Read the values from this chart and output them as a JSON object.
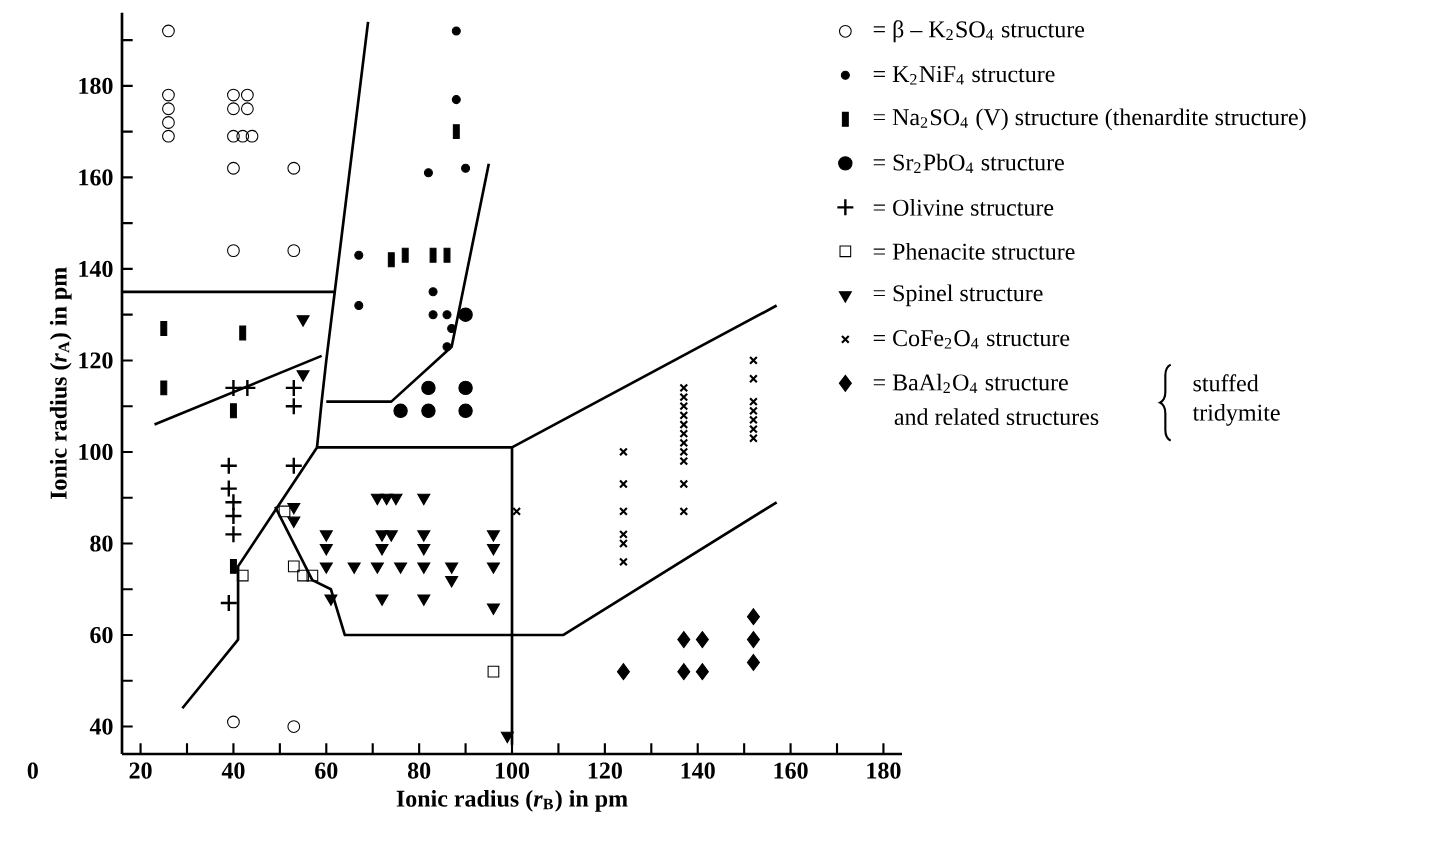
{
  "chart_data": {
    "type": "scatter",
    "xlabel": "Ionic radius (*r*$_{B}$) in pm",
    "ylabel": "Ionic radius (*r*$_{A}$) in pm",
    "xlim": [
      16,
      184
    ],
    "ylim": [
      34,
      196
    ],
    "xticks": [
      20,
      {
        "value": 30,
        "label": null
      },
      40,
      {
        "value": 50,
        "label": null
      },
      60,
      {
        "value": 70,
        "label": null
      },
      80,
      {
        "value": 90,
        "label": null
      },
      100,
      {
        "value": 110,
        "label": null
      },
      120,
      {
        "value": 130,
        "label": null
      },
      140,
      {
        "value": 150,
        "label": null
      },
      160,
      {
        "value": 170,
        "label": null
      },
      180
    ],
    "yticks": [
      40,
      {
        "value": 50,
        "label": null
      },
      60,
      {
        "value": 70,
        "label": null
      },
      80,
      {
        "value": 90,
        "label": null
      },
      100,
      {
        "value": 110,
        "label": null
      },
      120,
      {
        "value": 130,
        "label": null
      },
      140,
      {
        "value": 150,
        "label": null
      },
      160,
      {
        "value": 170,
        "label": null
      },
      180,
      {
        "value": 190,
        "label": null
      }
    ],
    "legend": "right",
    "annotations": [
      "and related structures",
      "stuffed tridymite",
      "0"
    ],
    "series": [
      {
        "name": "= β – K$_{2}$SO$_{4}$ structure",
        "marker": "circle",
        "color": "#000000",
        "x": [
          26,
          26,
          26,
          26,
          26,
          40,
          43,
          40,
          43,
          40,
          42,
          44,
          40,
          40,
          53,
          53,
          40,
          53
        ],
        "values": [
          192,
          178,
          175,
          172,
          169,
          178,
          178,
          175,
          175,
          169,
          169,
          169,
          162,
          144,
          162,
          144,
          41,
          40
        ]
      },
      {
        "name": "= K$_{2}$NiF$_{4}$ structure",
        "marker": "circle",
        "color": "#000000",
        "x": [
          88,
          88,
          82,
          90,
          67,
          67,
          83,
          83,
          86,
          87,
          86
        ],
        "values": [
          192,
          177,
          161,
          162,
          143,
          132,
          135,
          130,
          130,
          127,
          123
        ]
      },
      {
        "name": "= Na$_{2}$SO$_{4}$ (V) structure (thenardite structure)",
        "marker": "square",
        "color": "#000000",
        "x": [
          25,
          25,
          42,
          40,
          40,
          74,
          77,
          83,
          86,
          88
        ],
        "values": [
          127,
          114,
          126,
          109,
          75,
          142,
          143,
          143,
          143,
          170
        ]
      },
      {
        "name": "= Sr$_{2}$PbO$_{4}$  structure",
        "marker": "circle",
        "color": "#000000",
        "x": [
          90,
          82,
          90,
          76,
          82,
          90
        ],
        "values": [
          130,
          114,
          114,
          109,
          109,
          109
        ]
      },
      {
        "name": "= Olivine structure",
        "marker": "cross",
        "color": "#000000",
        "x": [
          40,
          43,
          53,
          53,
          39,
          39,
          40,
          40,
          40,
          39,
          53
        ],
        "values": [
          114,
          114,
          114,
          110,
          97,
          92,
          89,
          86,
          82,
          67,
          97
        ]
      },
      {
        "name": "= Phenacite structure",
        "marker": "square",
        "color": "#000000",
        "x": [
          42,
          53,
          55,
          57,
          96,
          51
        ],
        "values": [
          73,
          75,
          73,
          73,
          52,
          87
        ]
      },
      {
        "name": "= Spinel structure",
        "marker": "triangle",
        "color": "#000000",
        "x": [
          55,
          55,
          53,
          53,
          71,
          73,
          75,
          81,
          60,
          72,
          74,
          81,
          96,
          60,
          72,
          81,
          96,
          60,
          66,
          71,
          76,
          81,
          87,
          96,
          87,
          61,
          72,
          81,
          96,
          99
        ],
        "values": [
          129,
          117,
          88,
          85,
          90,
          90,
          90,
          90,
          82,
          82,
          82,
          82,
          82,
          79,
          79,
          79,
          79,
          75,
          75,
          75,
          75,
          75,
          75,
          75,
          72,
          68,
          68,
          68,
          66,
          38
        ]
      },
      {
        "name": "= CoFe$_{2}$O$_{4}$ structure",
        "marker": "cross",
        "color": "#000000",
        "x": [
          101,
          124,
          124,
          124,
          124,
          124,
          124,
          137,
          137,
          137,
          137,
          137,
          137,
          137,
          137,
          137,
          137,
          137,
          152,
          152,
          152,
          152,
          152,
          152,
          152
        ],
        "values": [
          87,
          100,
          93,
          87,
          82,
          80,
          76,
          114,
          112,
          110,
          108,
          106,
          104,
          102,
          100,
          98,
          93,
          87,
          120,
          116,
          111,
          109,
          107,
          105,
          103
        ]
      },
      {
        "name": "= BaAl$_{2}$O$_{4}$ structure",
        "marker": "diamond",
        "color": "#000000",
        "x": [
          124,
          137,
          141,
          137,
          141,
          152,
          152,
          152
        ],
        "values": [
          52,
          59,
          59,
          52,
          52,
          64,
          59,
          54
        ]
      },
      {
        "type": "line",
        "color": "#000000",
        "x": [
          69,
          60,
          59,
          58
        ],
        "values": [
          194,
          120,
          111,
          101
        ]
      },
      {
        "type": "line",
        "color": "#000000",
        "x": [
          58,
          100,
          100
        ],
        "values": [
          101,
          101,
          36
        ]
      },
      {
        "type": "line",
        "color": "#000000",
        "x": [
          100,
          157
        ],
        "values": [
          101,
          132
        ]
      },
      {
        "type": "line",
        "color": "#000000",
        "x": [
          49,
          57,
          61,
          64,
          111,
          157
        ],
        "values": [
          88,
          72,
          70,
          60,
          60,
          89
        ]
      },
      {
        "type": "line",
        "color": "#000000",
        "x": [
          29,
          41,
          41,
          58
        ],
        "values": [
          44,
          59,
          75,
          101
        ]
      },
      {
        "type": "line",
        "color": "#000000",
        "x": [
          23,
          59
        ],
        "values": [
          106,
          121
        ]
      },
      {
        "type": "line",
        "color": "#000000",
        "x": [
          16,
          62
        ],
        "values": [
          135,
          135
        ]
      },
      {
        "type": "line",
        "color": "#000000",
        "x": [
          95,
          87,
          74,
          60
        ],
        "values": [
          163,
          123,
          111,
          111
        ]
      }
    ]
  }
}
